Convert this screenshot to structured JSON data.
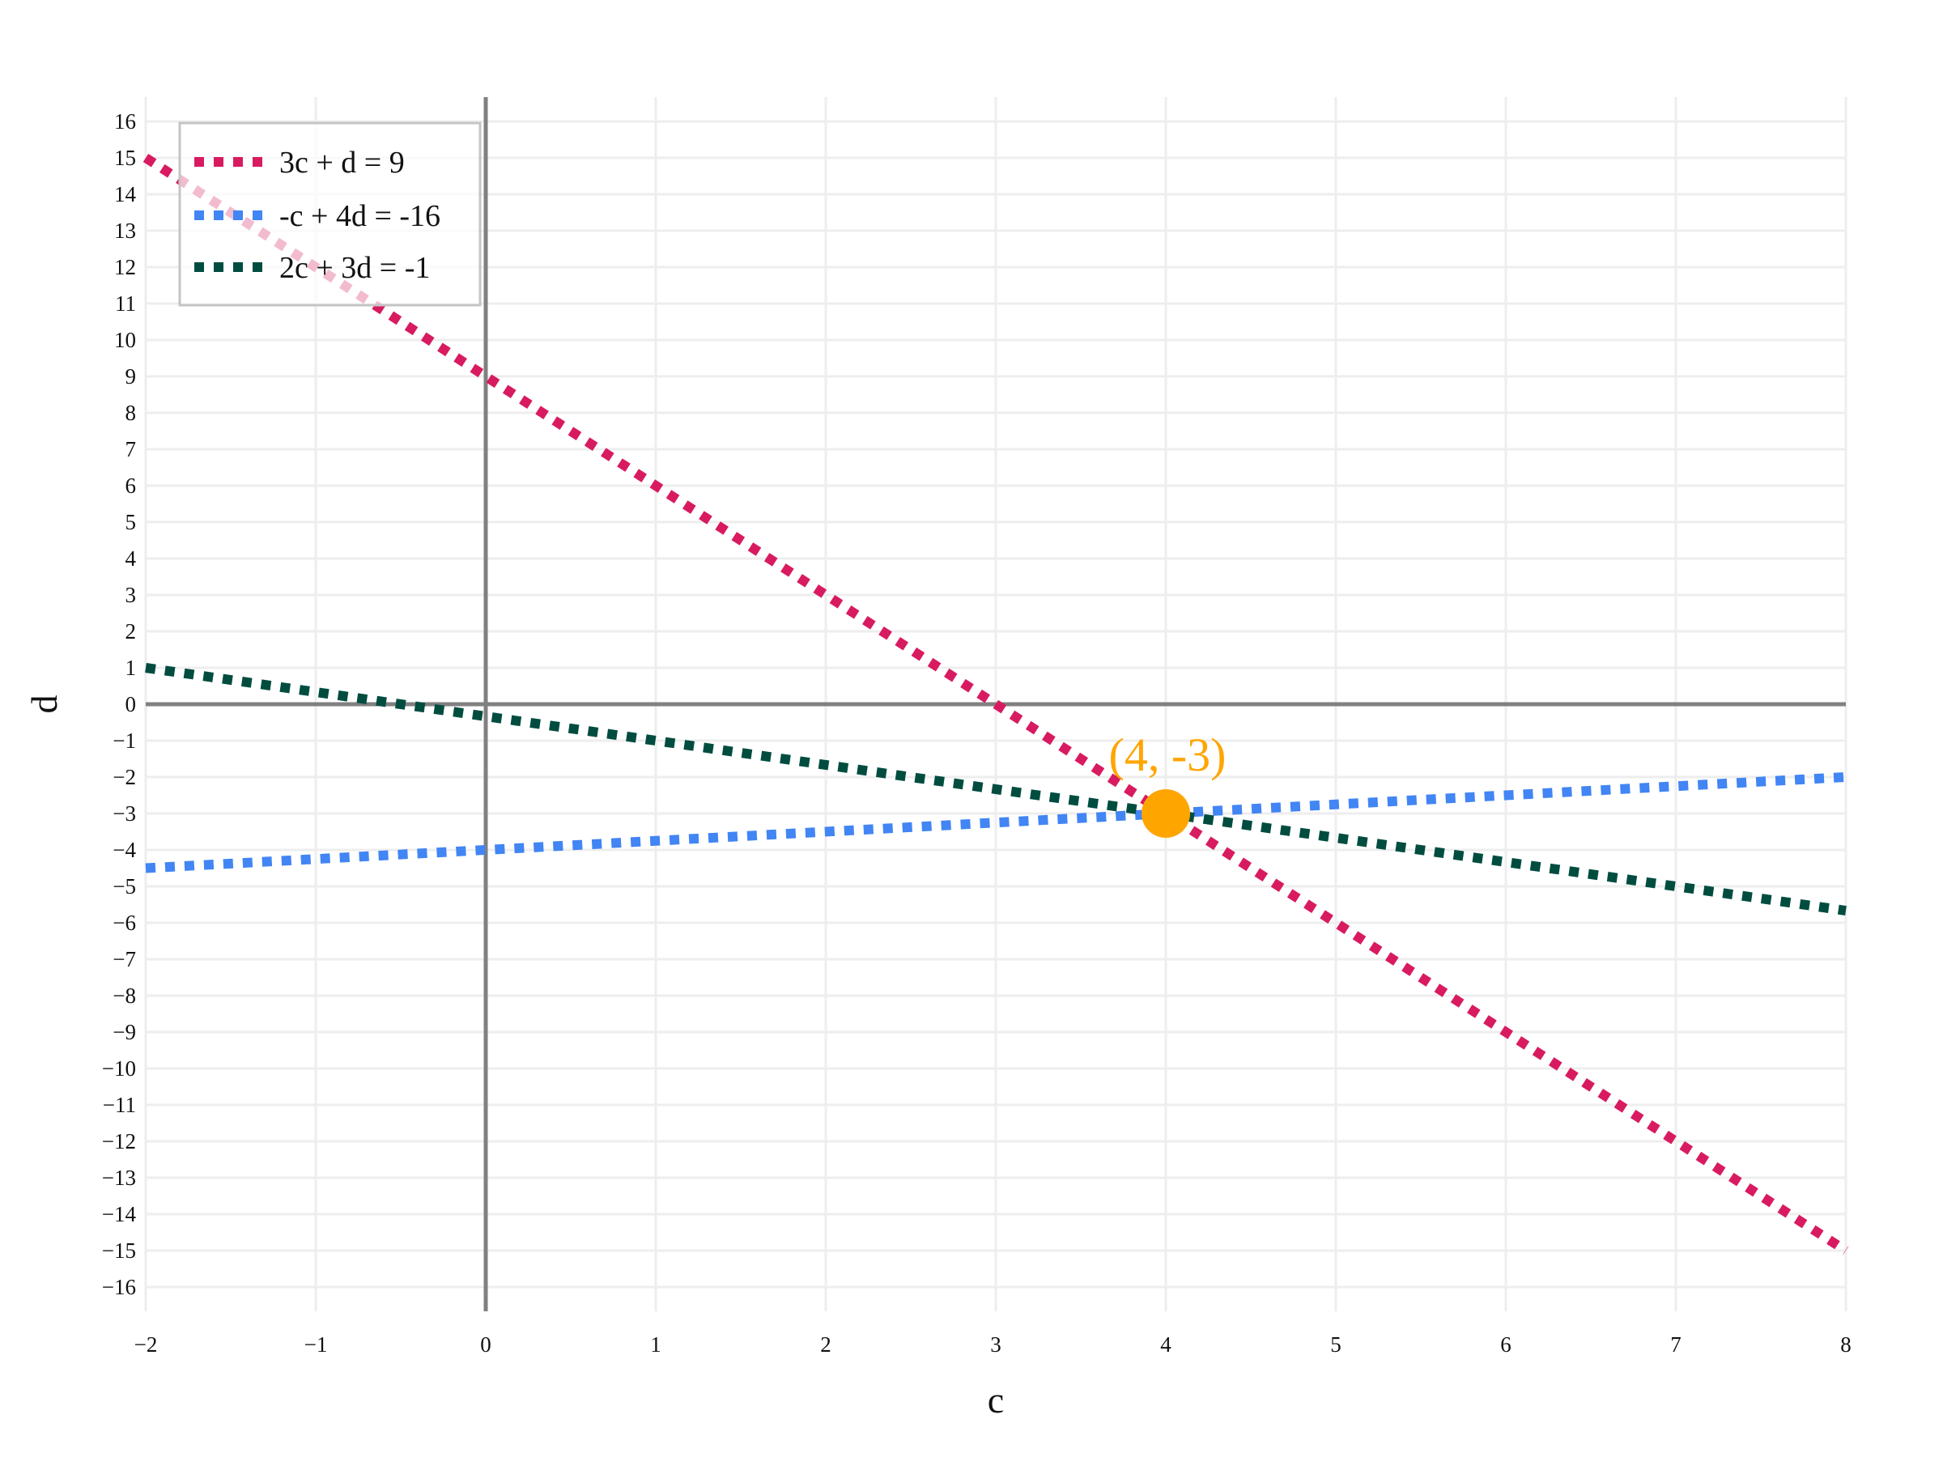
{
  "chart_data": {
    "type": "line",
    "title": "",
    "xlabel": "c",
    "ylabel": "d",
    "xlim": [
      -2,
      8
    ],
    "ylim": [
      -16.67,
      16.67
    ],
    "grid": true,
    "legend_position": "top-left",
    "x_ticks": [
      "−2",
      "−1",
      "0",
      "1",
      "2",
      "3",
      "4",
      "5",
      "6",
      "7",
      "8"
    ],
    "y_ticks": [
      "16",
      "15",
      "14",
      "13",
      "12",
      "11",
      "10",
      "9",
      "8",
      "7",
      "6",
      "5",
      "4",
      "3",
      "2",
      "1",
      "0",
      "−1",
      "−2",
      "−3",
      "−4",
      "−5",
      "−6",
      "−7",
      "−8",
      "−9",
      "−10",
      "−11",
      "−12",
      "−13",
      "−14",
      "−15",
      "−16"
    ],
    "series": [
      {
        "name": "3c + d = 9",
        "color": "#D81B60",
        "style": "dotted",
        "x": [
          -2,
          8
        ],
        "y": [
          15,
          -15
        ]
      },
      {
        "name": "-c + 4d = -16",
        "color": "#4285F4",
        "style": "dotted",
        "x": [
          -2,
          8
        ],
        "y": [
          -4.5,
          -2
        ]
      },
      {
        "name": "2c + 3d = -1",
        "color": "#004D40",
        "style": "dotted",
        "x": [
          -2,
          8
        ],
        "y": [
          1,
          -5.667
        ]
      }
    ],
    "annotations": [
      {
        "text": "(4, -3)",
        "x": 4,
        "y": -3,
        "color": "#FFA500",
        "marker": "circle"
      }
    ]
  },
  "legend": {
    "items": [
      {
        "label": "3c + d = 9",
        "color": "#D81B60"
      },
      {
        "label": "-c + 4d = -16",
        "color": "#4285F4"
      },
      {
        "label": "2c + 3d = -1",
        "color": "#004D40"
      }
    ]
  },
  "axes": {
    "x_title": "c",
    "y_title": "d"
  },
  "annotation": {
    "label": "(4, -3)",
    "color": "#FFA500"
  }
}
